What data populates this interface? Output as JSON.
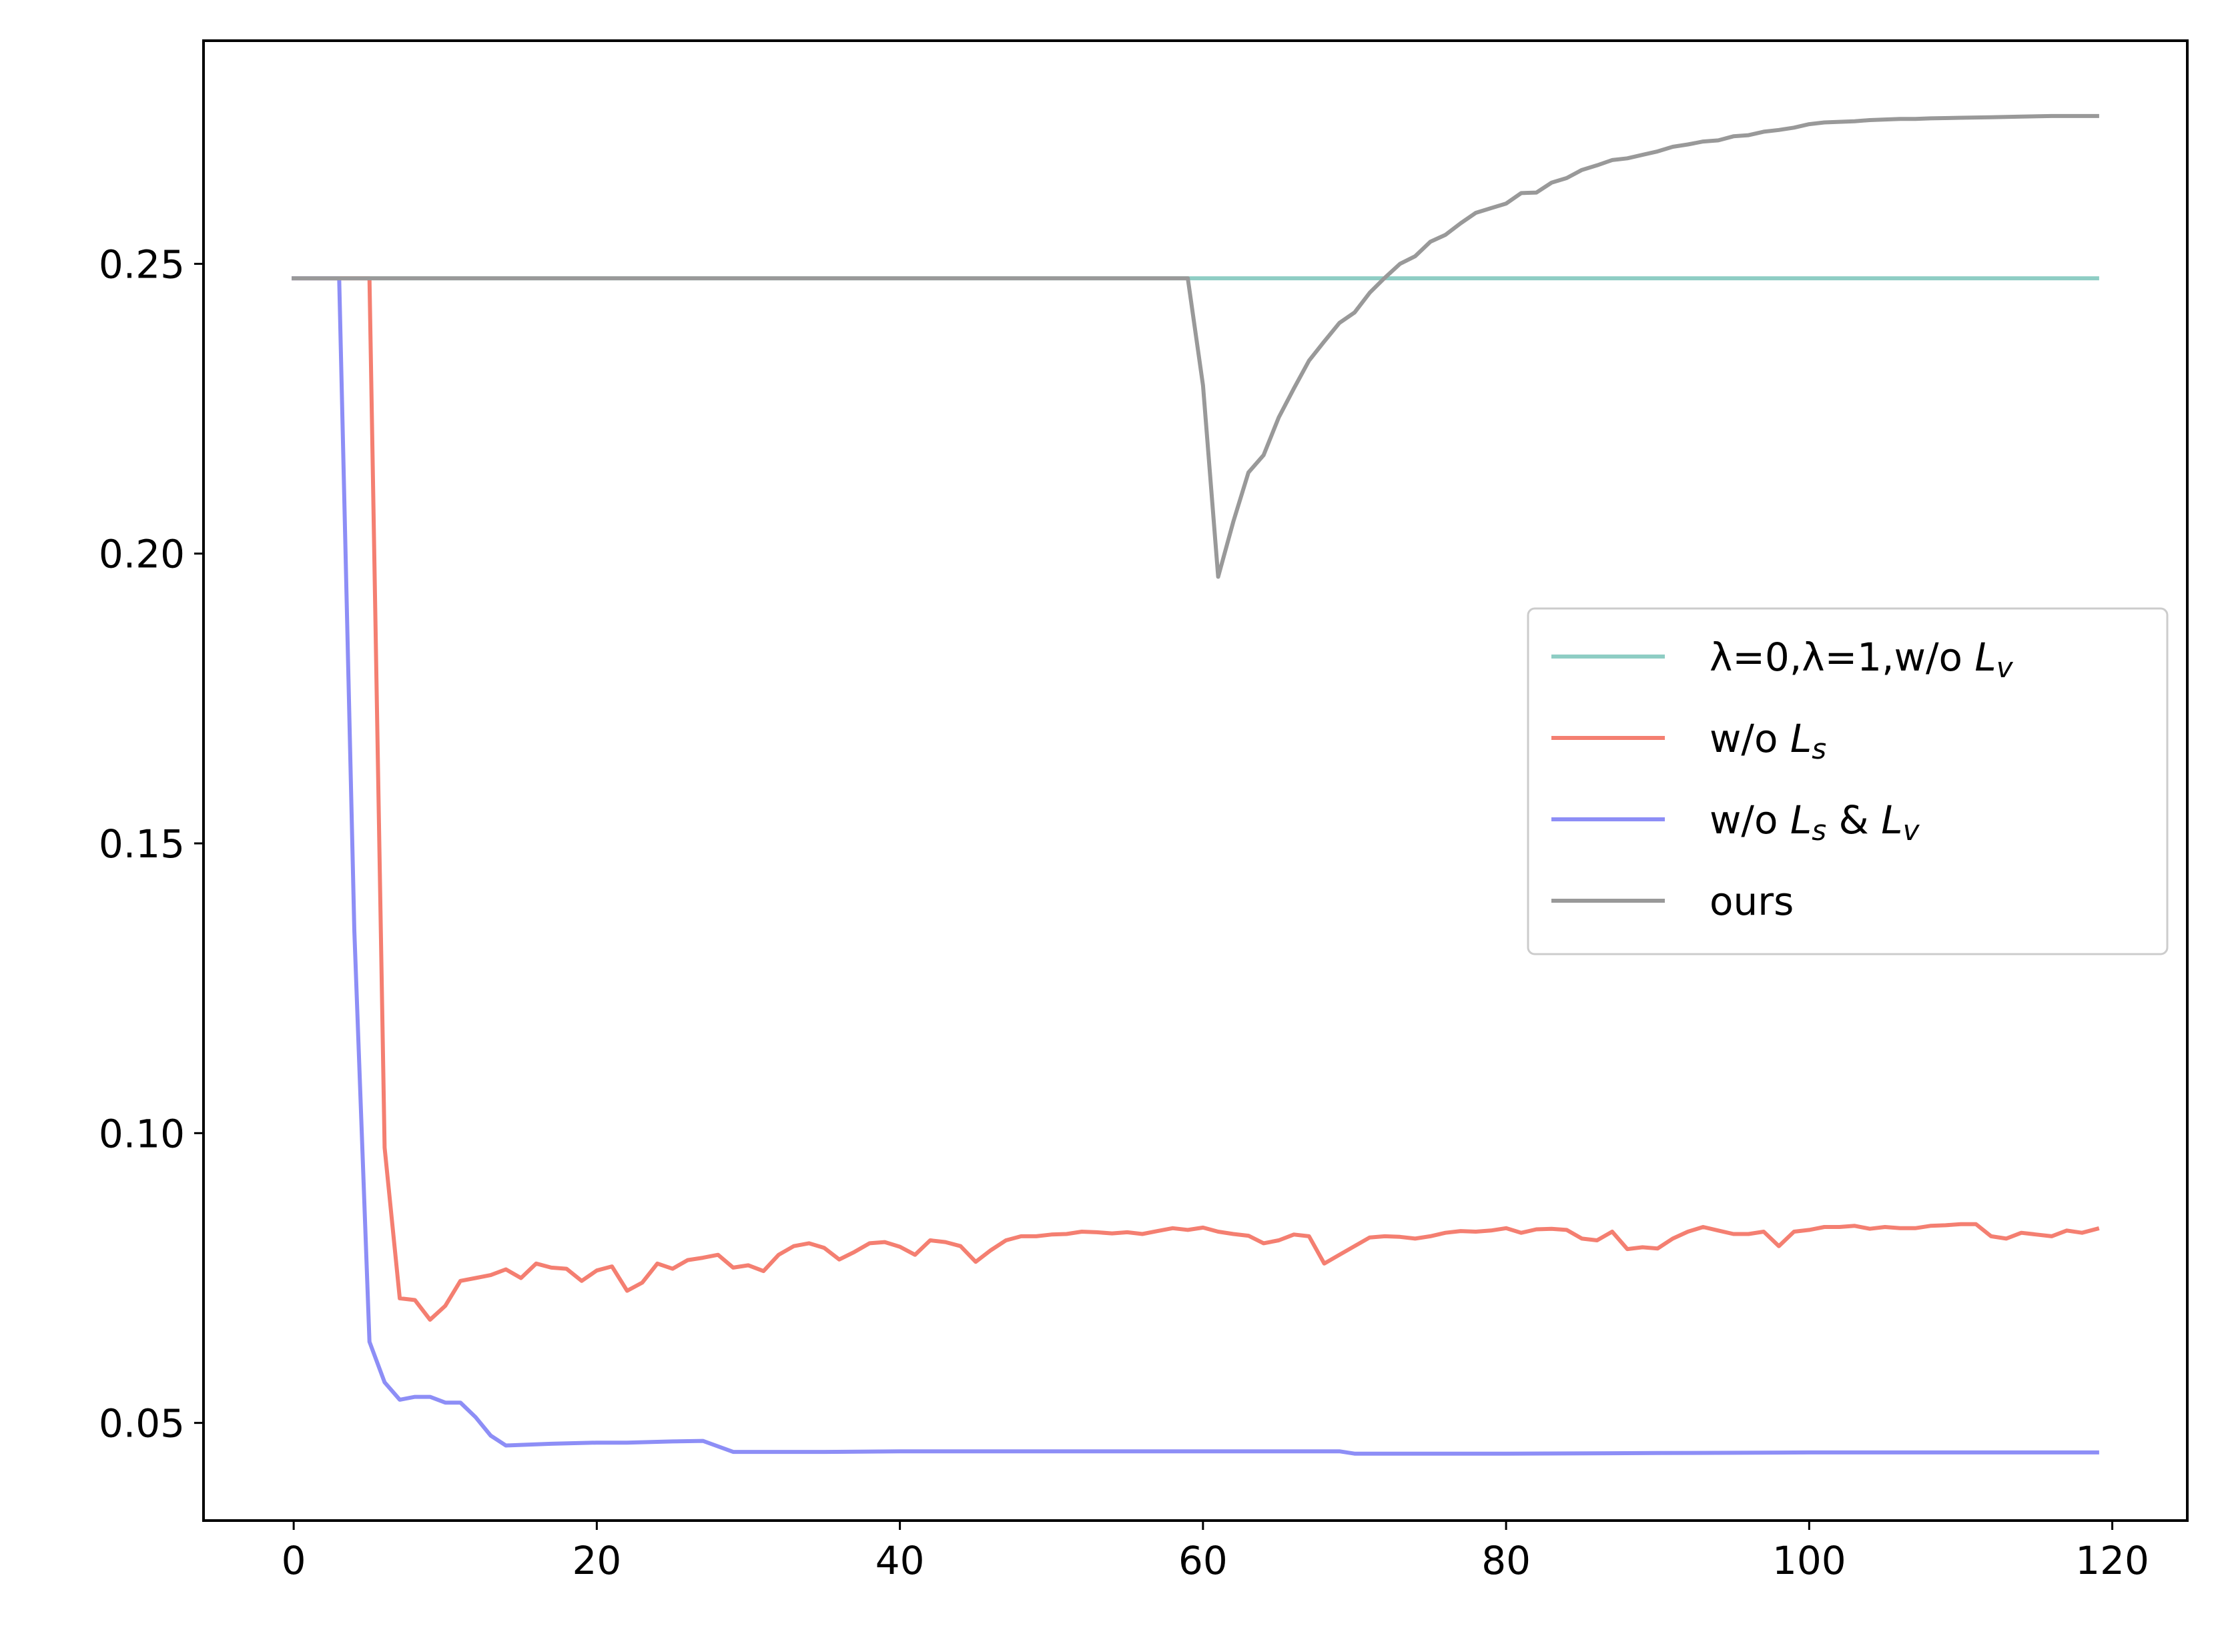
{
  "chart_data": {
    "type": "line",
    "title": "",
    "xlabel": "",
    "ylabel": "",
    "xlim": [
      -5.95,
      124.95
    ],
    "ylim": [
      0.03315,
      0.2885
    ],
    "xticks": [
      {
        "value": 0,
        "label": "0"
      },
      {
        "value": 20,
        "label": "20"
      },
      {
        "value": 40,
        "label": "40"
      },
      {
        "value": 60,
        "label": "60"
      },
      {
        "value": 80,
        "label": "80"
      },
      {
        "value": 100,
        "label": "100"
      },
      {
        "value": 120,
        "label": "120"
      }
    ],
    "yticks": [
      {
        "value": 0.05,
        "label": "0.05"
      },
      {
        "value": 0.1,
        "label": "0.10"
      },
      {
        "value": 0.15,
        "label": "0.15"
      },
      {
        "value": 0.2,
        "label": "0.20"
      },
      {
        "value": 0.25,
        "label": "0.25"
      }
    ],
    "grid": false,
    "legend_position": "center-right",
    "series": [
      {
        "name_prefix": "λ=0,λ=1,w/o ",
        "name_var": "L",
        "name_sub": "v",
        "name_suffix": "",
        "name_var2": "",
        "name_sub2": "",
        "color": "#8ecdc4",
        "points": [
          [
            0,
            0.2475
          ],
          [
            119,
            0.2475
          ]
        ]
      },
      {
        "name_prefix": "w/o ",
        "name_var": "L",
        "name_sub": "s",
        "name_suffix": "",
        "name_var2": "",
        "name_sub2": "",
        "color": "#f47f71",
        "points": [
          [
            0,
            0.2475
          ],
          [
            5,
            0.2475
          ],
          [
            6,
            0.0975
          ],
          [
            7,
            0.0715
          ],
          [
            8,
            0.0712
          ],
          [
            9,
            0.0678
          ],
          [
            10,
            0.0702
          ],
          [
            11,
            0.0745
          ],
          [
            12,
            0.075
          ],
          [
            13,
            0.0755
          ],
          [
            14,
            0.0765
          ],
          [
            15,
            0.075
          ],
          [
            16,
            0.0775
          ],
          [
            17,
            0.0768
          ],
          [
            18,
            0.0766
          ],
          [
            19,
            0.0745
          ],
          [
            20,
            0.0763
          ],
          [
            21,
            0.077
          ],
          [
            22,
            0.0728
          ],
          [
            23,
            0.0742
          ],
          [
            24,
            0.0775
          ],
          [
            25,
            0.0766
          ],
          [
            26,
            0.0781
          ],
          [
            27,
            0.0785
          ],
          [
            28,
            0.079
          ],
          [
            29,
            0.0768
          ],
          [
            30,
            0.0772
          ],
          [
            31,
            0.0762
          ],
          [
            32,
            0.079
          ],
          [
            33,
            0.0805
          ],
          [
            34,
            0.081
          ],
          [
            35,
            0.0802
          ],
          [
            36,
            0.0782
          ],
          [
            37,
            0.0795
          ],
          [
            38,
            0.081
          ],
          [
            39,
            0.0812
          ],
          [
            40,
            0.0804
          ],
          [
            41,
            0.079
          ],
          [
            42,
            0.0815
          ],
          [
            43,
            0.0812
          ],
          [
            44,
            0.0805
          ],
          [
            45,
            0.0778
          ],
          [
            46,
            0.0798
          ],
          [
            47,
            0.0815
          ],
          [
            48,
            0.0822
          ],
          [
            49,
            0.0822
          ],
          [
            50,
            0.0825
          ],
          [
            51,
            0.0826
          ],
          [
            52,
            0.083
          ],
          [
            53,
            0.0829
          ],
          [
            54,
            0.0827
          ],
          [
            55,
            0.0829
          ],
          [
            56,
            0.0826
          ],
          [
            57,
            0.0831
          ],
          [
            58,
            0.0836
          ],
          [
            59,
            0.0833
          ],
          [
            60,
            0.0837
          ],
          [
            61,
            0.083
          ],
          [
            62,
            0.0826
          ],
          [
            63,
            0.0823
          ],
          [
            64,
            0.081
          ],
          [
            65,
            0.0815
          ],
          [
            66,
            0.0825
          ],
          [
            67,
            0.0822
          ],
          [
            68,
            0.0775
          ],
          [
            69,
            0.079
          ],
          [
            70,
            0.0805
          ],
          [
            71,
            0.082
          ],
          [
            72,
            0.0822
          ],
          [
            73,
            0.0821
          ],
          [
            74,
            0.0818
          ],
          [
            75,
            0.0822
          ],
          [
            76,
            0.0828
          ],
          [
            77,
            0.0831
          ],
          [
            78,
            0.083
          ],
          [
            79,
            0.0832
          ],
          [
            80,
            0.0836
          ],
          [
            81,
            0.0828
          ],
          [
            82,
            0.0834
          ],
          [
            83,
            0.0835
          ],
          [
            84,
            0.0833
          ],
          [
            85,
            0.0818
          ],
          [
            86,
            0.0815
          ],
          [
            87,
            0.083
          ],
          [
            88,
            0.08
          ],
          [
            89,
            0.0803
          ],
          [
            90,
            0.0801
          ],
          [
            91,
            0.0818
          ],
          [
            92,
            0.083
          ],
          [
            93,
            0.0838
          ],
          [
            94,
            0.0832
          ],
          [
            95,
            0.0826
          ],
          [
            96,
            0.0826
          ],
          [
            97,
            0.083
          ],
          [
            98,
            0.0805
          ],
          [
            99,
            0.083
          ],
          [
            100,
            0.0833
          ],
          [
            101,
            0.0838
          ],
          [
            102,
            0.0838
          ],
          [
            103,
            0.084
          ],
          [
            104,
            0.0835
          ],
          [
            105,
            0.0838
          ],
          [
            106,
            0.0836
          ],
          [
            107,
            0.0836
          ],
          [
            108,
            0.084
          ],
          [
            109,
            0.0841
          ],
          [
            110,
            0.0843
          ],
          [
            111,
            0.0843
          ],
          [
            112,
            0.0822
          ],
          [
            113,
            0.0818
          ],
          [
            114,
            0.0828
          ],
          [
            115,
            0.0825
          ],
          [
            116,
            0.0822
          ],
          [
            117,
            0.0832
          ],
          [
            118,
            0.0828
          ],
          [
            119,
            0.0835
          ]
        ]
      },
      {
        "name_prefix": "w/o ",
        "name_var": "L",
        "name_sub": "s",
        "name_suffix": " & ",
        "name_var2": "L",
        "name_sub2": "v",
        "color": "#8d8ef6",
        "points": [
          [
            0,
            0.2475
          ],
          [
            3,
            0.2475
          ],
          [
            4,
            0.135
          ],
          [
            5,
            0.064
          ],
          [
            6,
            0.057
          ],
          [
            7,
            0.054
          ],
          [
            8,
            0.0545
          ],
          [
            9,
            0.0545
          ],
          [
            10,
            0.0535
          ],
          [
            11,
            0.0535
          ],
          [
            12,
            0.051
          ],
          [
            13,
            0.0478
          ],
          [
            14,
            0.0461
          ],
          [
            15,
            0.0462
          ],
          [
            17,
            0.0464
          ],
          [
            20,
            0.0466
          ],
          [
            22,
            0.0466
          ],
          [
            25,
            0.0468
          ],
          [
            27,
            0.0469
          ],
          [
            29,
            0.045
          ],
          [
            35,
            0.045
          ],
          [
            40,
            0.0451
          ],
          [
            50,
            0.0451
          ],
          [
            60,
            0.0451
          ],
          [
            69,
            0.0451
          ],
          [
            70,
            0.0447
          ],
          [
            80,
            0.0447
          ],
          [
            90,
            0.0448
          ],
          [
            100,
            0.0449
          ],
          [
            110,
            0.0449
          ],
          [
            119,
            0.0449
          ]
        ]
      },
      {
        "name_prefix": "ours",
        "name_var": "",
        "name_sub": "",
        "name_suffix": "",
        "name_var2": "",
        "name_sub2": "",
        "color": "#999999",
        "points": [
          [
            0,
            0.2475
          ],
          [
            59,
            0.2475
          ],
          [
            60,
            0.229
          ],
          [
            61,
            0.196
          ],
          [
            62,
            0.2055
          ],
          [
            63,
            0.214
          ],
          [
            64,
            0.217
          ],
          [
            65,
            0.2235
          ],
          [
            66,
            0.2285
          ],
          [
            67,
            0.2333
          ],
          [
            68,
            0.2366
          ],
          [
            69,
            0.2398
          ],
          [
            70,
            0.2416
          ],
          [
            71,
            0.245
          ],
          [
            72,
            0.2476
          ],
          [
            73,
            0.25
          ],
          [
            74,
            0.2513
          ],
          [
            75,
            0.2538
          ],
          [
            76,
            0.255
          ],
          [
            77,
            0.257
          ],
          [
            78,
            0.2588
          ],
          [
            79,
            0.2596
          ],
          [
            80,
            0.2604
          ],
          [
            81,
            0.2622
          ],
          [
            82,
            0.2623
          ],
          [
            83,
            0.264
          ],
          [
            84,
            0.2648
          ],
          [
            85,
            0.2662
          ],
          [
            86,
            0.267
          ],
          [
            87,
            0.2679
          ],
          [
            88,
            0.2682
          ],
          [
            89,
            0.2688
          ],
          [
            90,
            0.2694
          ],
          [
            91,
            0.2702
          ],
          [
            92,
            0.2706
          ],
          [
            93,
            0.2711
          ],
          [
            94,
            0.2713
          ],
          [
            95,
            0.272
          ],
          [
            96,
            0.2722
          ],
          [
            97,
            0.2728
          ],
          [
            98,
            0.2731
          ],
          [
            99,
            0.2735
          ],
          [
            100,
            0.2741
          ],
          [
            101,
            0.2744
          ],
          [
            102,
            0.2745
          ],
          [
            103,
            0.2746
          ],
          [
            104,
            0.2748
          ],
          [
            105,
            0.2749
          ],
          [
            106,
            0.275
          ],
          [
            107,
            0.275
          ],
          [
            108,
            0.2751
          ],
          [
            110,
            0.2752
          ],
          [
            112,
            0.2753
          ],
          [
            114,
            0.2754
          ],
          [
            116,
            0.2755
          ],
          [
            119,
            0.2755
          ]
        ]
      }
    ]
  }
}
